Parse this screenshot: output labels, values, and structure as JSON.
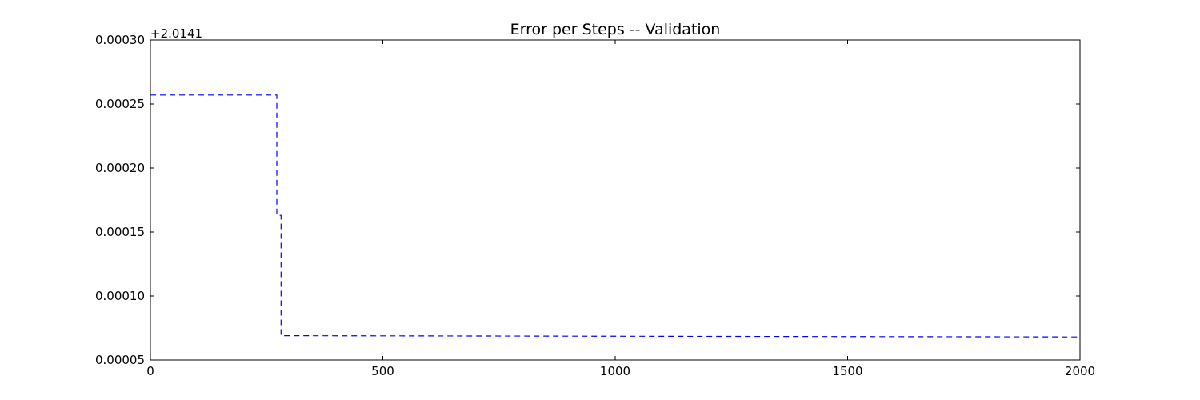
{
  "chart_data": {
    "type": "line",
    "title": "Error per Steps -- Validation",
    "xlabel": "",
    "ylabel": "",
    "y_offset_label": "+2.0141",
    "xlim": [
      0,
      2000
    ],
    "ylim": [
      5e-05,
      0.0003
    ],
    "x_ticks": [
      0,
      500,
      1000,
      1500,
      2000
    ],
    "x_tick_labels": [
      "0",
      "500",
      "1000",
      "1500",
      "2000"
    ],
    "y_ticks": [
      5e-05,
      0.0001,
      0.00015,
      0.0002,
      0.00025,
      0.0003
    ],
    "y_tick_labels": [
      "0.00005",
      "0.00010",
      "0.00015",
      "0.00020",
      "0.00025",
      "0.00030"
    ],
    "grid": false,
    "series": [
      {
        "line_style": "dashed",
        "color": "#0000ff",
        "x": [
          0,
          272,
          272,
          281,
          281,
          2000
        ],
        "y": [
          0.000257,
          0.000257,
          0.000163,
          0.000163,
          6.9e-05,
          6.8e-05
        ]
      }
    ]
  }
}
